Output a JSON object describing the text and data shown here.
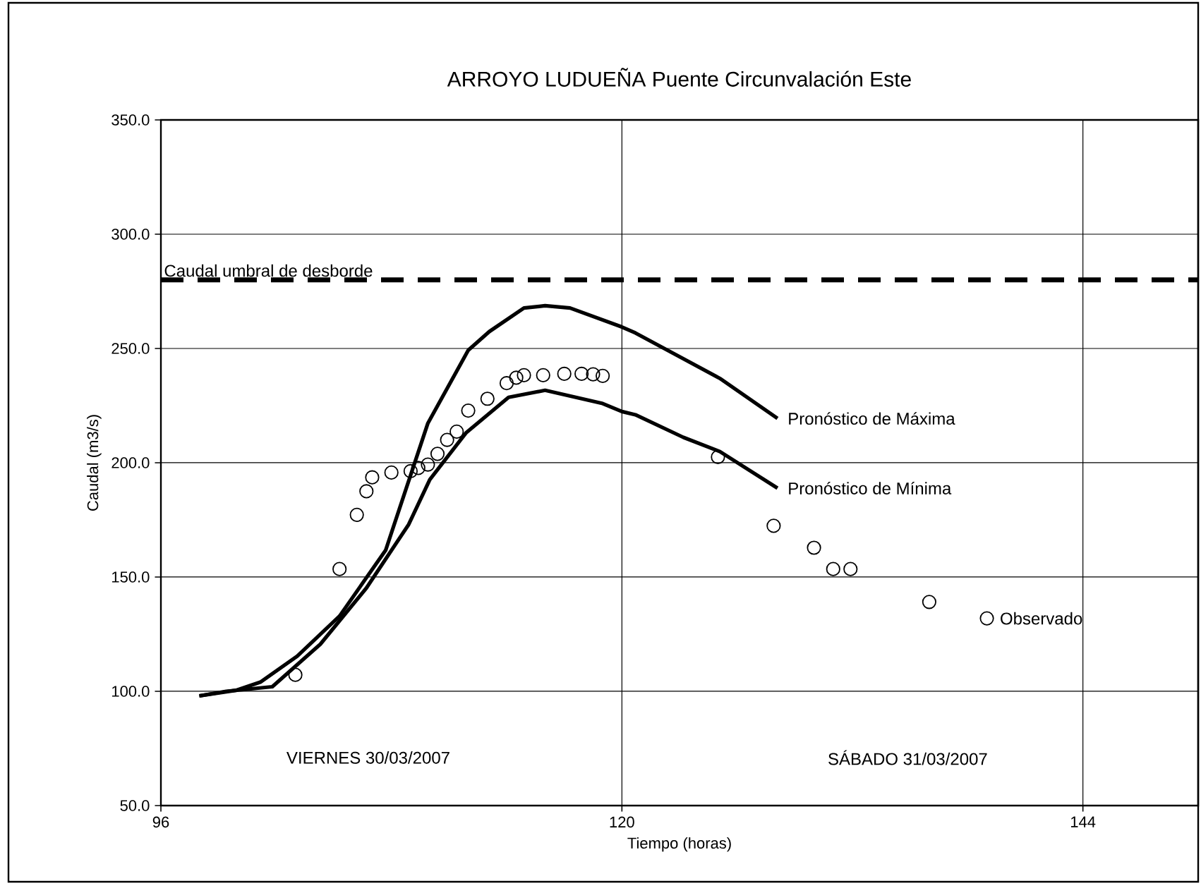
{
  "chart_data": {
    "type": "line",
    "title": "ARROYO LUDUEÑA Puente Circunvalación Este",
    "xlabel": "Tiempo (horas)",
    "ylabel": "Caudal (m3/s)",
    "xlim": [
      96,
      150
    ],
    "xticks": [
      96,
      120,
      144
    ],
    "ylim": [
      50,
      350
    ],
    "yticks": [
      {
        "value": 50,
        "label": "50.0"
      },
      {
        "value": 100,
        "label": "100.0"
      },
      {
        "value": 150,
        "label": "150.0"
      },
      {
        "value": 200,
        "label": "200.0"
      },
      {
        "value": 250,
        "label": "250.0"
      },
      {
        "value": 300,
        "label": "300.0"
      },
      {
        "value": 350,
        "label": "350.0"
      }
    ],
    "grid": true,
    "ref_lines": [
      {
        "axis": "y",
        "value": 280,
        "label": "Caudal umbral de desborde",
        "color": "#000000",
        "line_style": "dashed"
      }
    ],
    "annotations": [
      "VIERNES  30/03/2007",
      "SÁBADO 31/03/2007"
    ],
    "series": [
      {
        "name": "Pronóstico de Máxima",
        "type": "line",
        "color": "#000000",
        "marker": "none",
        "line_style": "solid",
        "x": [
          98,
          99.9,
          101.2,
          103.1,
          105.3,
          107.7,
          109.9,
          112.0,
          113.1,
          114.9,
          116.0,
          117.3,
          120.0,
          120.7,
          125.1,
          128.1
        ],
        "values": [
          98,
          100.4,
          104.1,
          115.4,
          132.9,
          161.7,
          217.3,
          249.2,
          257.4,
          267.7,
          268.7,
          267.7,
          259.4,
          256.8,
          236.9,
          219.4
        ]
      },
      {
        "name": "Pronóstico de Mínima",
        "type": "line",
        "color": "#000000",
        "marker": "none",
        "line_style": "solid",
        "x": [
          98,
          99.4,
          101.8,
          104.3,
          106.7,
          108.9,
          110.0,
          111.9,
          114.1,
          116.0,
          119.0,
          120.0,
          120.7,
          123.2,
          125.1,
          128.1
        ],
        "values": [
          98,
          100,
          102,
          120.6,
          145.2,
          173,
          192.6,
          213.2,
          228.6,
          231.7,
          225.9,
          222.4,
          221,
          211.1,
          204.9,
          188.9
        ]
      },
      {
        "name": "Observado",
        "color": "#000000",
        "type": "scatter",
        "marker": "circle",
        "x": [
          103.0,
          105.3,
          106.2,
          106.7,
          107.0,
          108.0,
          109.0,
          109.4,
          109.9,
          110.4,
          110.9,
          111.4,
          112.0,
          113.0,
          114.0,
          114.5,
          114.9,
          115.9,
          117.0,
          117.9,
          118.5,
          119.0,
          125.0,
          127.9,
          130.0,
          131.0,
          131.9,
          136.0,
          139.0
        ],
        "values": [
          107.2,
          153.5,
          177.2,
          187.5,
          193.6,
          195.7,
          196.3,
          197.7,
          199.2,
          203.9,
          210,
          213.6,
          222.8,
          228,
          234.8,
          237.2,
          238.3,
          238.3,
          238.9,
          238.9,
          238.7,
          238,
          202.5,
          172.4,
          162.8,
          153.5,
          153.5,
          139.1,
          131.9
        ]
      }
    ]
  }
}
